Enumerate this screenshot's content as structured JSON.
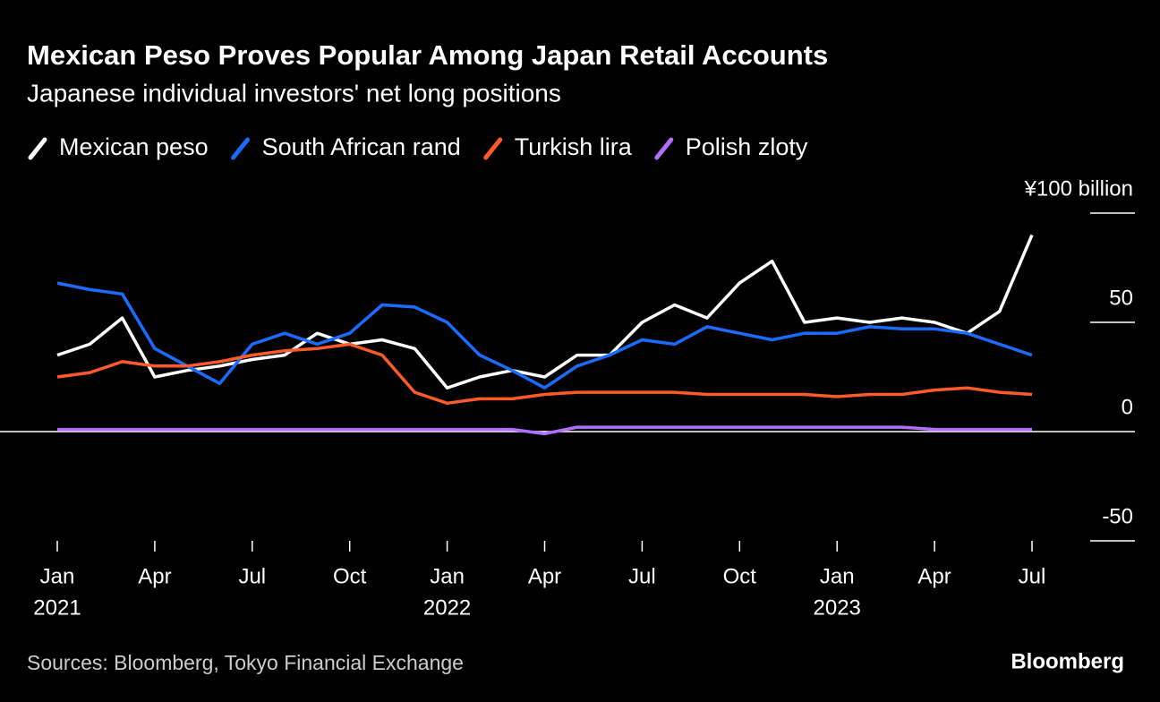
{
  "chart_data": {
    "type": "line",
    "title": "Mexican Peso Proves Popular Among Japan Retail Accounts",
    "subtitle": "Japanese individual investors' net long positions",
    "source": "Sources: Bloomberg, Tokyo Financial Exchange",
    "brand": "Bloomberg",
    "x": [
      "2021-01",
      "2021-02",
      "2021-03",
      "2021-04",
      "2021-05",
      "2021-06",
      "2021-07",
      "2021-08",
      "2021-09",
      "2021-10",
      "2021-11",
      "2021-12",
      "2022-01",
      "2022-02",
      "2022-03",
      "2022-04",
      "2022-05",
      "2022-06",
      "2022-07",
      "2022-08",
      "2022-09",
      "2022-10",
      "2022-11",
      "2022-12",
      "2023-01",
      "2023-02",
      "2023-03",
      "2023-04",
      "2023-05",
      "2023-06",
      "2023-07"
    ],
    "series": [
      {
        "name": "Mexican peso",
        "color": "#ffffff",
        "values": [
          35,
          40,
          52,
          25,
          28,
          30,
          33,
          35,
          45,
          40,
          42,
          38,
          20,
          25,
          28,
          25,
          35,
          35,
          50,
          58,
          52,
          68,
          78,
          50,
          52,
          50,
          52,
          50,
          45,
          55,
          90
        ]
      },
      {
        "name": "South African rand",
        "color": "#1a6cff",
        "values": [
          68,
          65,
          63,
          38,
          30,
          22,
          40,
          45,
          40,
          45,
          58,
          57,
          50,
          35,
          28,
          20,
          30,
          35,
          42,
          40,
          48,
          45,
          42,
          45,
          45,
          48,
          47,
          47,
          45,
          40,
          35
        ]
      },
      {
        "name": "Turkish lira",
        "color": "#ff5a2a",
        "values": [
          25,
          27,
          32,
          30,
          30,
          32,
          35,
          37,
          38,
          40,
          35,
          18,
          13,
          15,
          15,
          17,
          18,
          18,
          18,
          18,
          17,
          17,
          17,
          17,
          16,
          17,
          17,
          19,
          20,
          18,
          17
        ]
      },
      {
        "name": "Polish zloty",
        "color": "#b46eff",
        "values": [
          1,
          1,
          1,
          1,
          1,
          1,
          1,
          1,
          1,
          1,
          1,
          1,
          1,
          1,
          1,
          -1,
          2,
          2,
          2,
          2,
          2,
          2,
          2,
          2,
          2,
          2,
          2,
          1,
          1,
          1,
          1
        ]
      }
    ],
    "ylim": [
      -50,
      100
    ],
    "yticks": [
      {
        "value": 100,
        "label": "¥100 billion"
      },
      50,
      0,
      -50
    ],
    "xticks": [
      {
        "value": "2021-01",
        "label": "Jan"
      },
      {
        "value": "2021-04",
        "label": "Apr"
      },
      {
        "value": "2021-07",
        "label": "Jul"
      },
      {
        "value": "2021-10",
        "label": "Oct"
      },
      {
        "value": "2022-01",
        "label": "Jan"
      },
      {
        "value": "2022-04",
        "label": "Apr"
      },
      {
        "value": "2022-07",
        "label": "Jul"
      },
      {
        "value": "2022-10",
        "label": "Oct"
      },
      {
        "value": "2023-01",
        "label": "Jan"
      },
      {
        "value": "2023-04",
        "label": "Apr"
      },
      {
        "value": "2023-07",
        "label": "Jul"
      }
    ],
    "year_labels": [
      {
        "value": "2021-01",
        "label": "2021"
      },
      {
        "value": "2022-01",
        "label": "2022"
      },
      {
        "value": "2023-01",
        "label": "2023"
      }
    ]
  }
}
